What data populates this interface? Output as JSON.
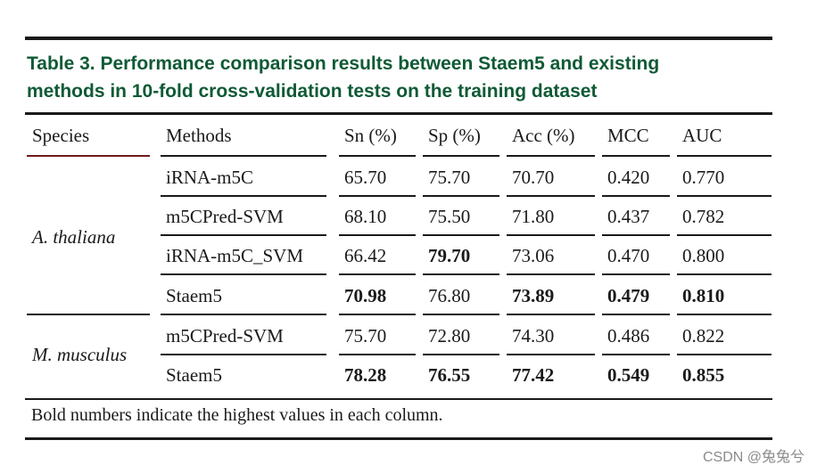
{
  "table": {
    "caption_line1": "Table 3. Performance comparison results between Staem5 and existing",
    "caption_line2": "methods in 10-fold cross-validation tests on the training dataset",
    "headers": [
      "Species",
      "Methods",
      "Sn (%)",
      "Sp (%)",
      "Acc (%)",
      "MCC",
      "AUC"
    ],
    "groups": [
      {
        "species": "A. thaliana",
        "rows": [
          {
            "method": "iRNA-m5C",
            "sn": "65.70",
            "sp": "75.70",
            "acc": "70.70",
            "mcc": "0.420",
            "auc": "0.770"
          },
          {
            "method": "m5CPred-SVM",
            "sn": "68.10",
            "sp": "75.50",
            "acc": "71.80",
            "mcc": "0.437",
            "auc": "0.782"
          },
          {
            "method": "iRNA-m5C_SVM",
            "sn": "66.42",
            "sp": "79.70",
            "acc": "73.06",
            "mcc": "0.470",
            "auc": "0.800"
          },
          {
            "method": "Staem5",
            "sn": "70.98",
            "sp": "76.80",
            "acc": "73.89",
            "mcc": "0.479",
            "auc": "0.810"
          }
        ]
      },
      {
        "species": "M. musculus",
        "rows": [
          {
            "method": "m5CPred-SVM",
            "sn": "75.70",
            "sp": "72.80",
            "acc": "74.30",
            "mcc": "0.486",
            "auc": "0.822"
          },
          {
            "method": "Staem5",
            "sn": "78.28",
            "sp": "76.55",
            "acc": "77.42",
            "mcc": "0.549",
            "auc": "0.855"
          }
        ]
      }
    ],
    "footnote": "Bold numbers indicate the highest values in each column."
  },
  "watermark": "CSDN @兔兔兮"
}
